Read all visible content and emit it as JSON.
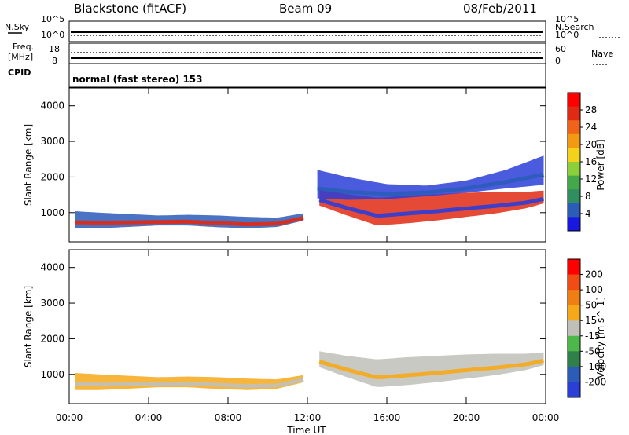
{
  "header": {
    "station": "Blackstone (fitACF)",
    "beam": "Beam 09",
    "date": "08/Feb/2011"
  },
  "status_panels": {
    "nsky_label": "N.Sky",
    "nsearch_label": "N.Search",
    "freq_label_line1": "Freq.",
    "freq_label_line2": "[MHz]",
    "nave_label": "Nave",
    "cpid_label": "CPID",
    "noise_ticks_left": [
      "10^5",
      "10^0"
    ],
    "noise_ticks_right": [
      "10^5",
      "10^0"
    ],
    "freq_ticks_left": [
      "18",
      "8"
    ],
    "nave_ticks_right": [
      "60",
      "0"
    ],
    "cpid_text": "normal (fast stereo) 153",
    "colors": {
      "line": "#000000"
    }
  },
  "chart_data": [
    {
      "type": "heatmap",
      "title": "",
      "quantity": "Power",
      "ylabel": "Slant Range [km]",
      "xlabel": "",
      "x_ticks": [
        "00:00",
        "04:00",
        "08:00",
        "12:00",
        "16:00",
        "20:00",
        "00:00"
      ],
      "xlim_hours": [
        0,
        24
      ],
      "ylim": [
        180,
        4500
      ],
      "y_ticks": [
        1000,
        2000,
        3000,
        4000
      ],
      "colorbar": {
        "label": "Power [dB]",
        "ticks": [
          4,
          8,
          12,
          16,
          20,
          24,
          28
        ],
        "range": [
          0,
          30
        ],
        "colors": [
          "#1818e0",
          "#2a5cb8",
          "#2f8f5e",
          "#44a84a",
          "#8ccf3a",
          "#f2d21a",
          "#f39a12",
          "#f0641a",
          "#e02a14",
          "#ff0000"
        ]
      },
      "band_series": [
        {
          "name": "main-scatter",
          "hours": [
            0.3,
            1.5,
            3.0,
            4.5,
            6.0,
            7.5,
            9.0,
            10.5,
            11.8
          ],
          "lower_km": [
            560,
            560,
            600,
            640,
            640,
            590,
            560,
            600,
            780
          ],
          "upper_km": [
            1040,
            1000,
            960,
            920,
            940,
            920,
            880,
            860,
            980
          ]
        },
        {
          "name": "late-scatter",
          "hours": [
            12.6,
            14.0,
            15.5,
            17.0,
            18.5,
            20.0,
            21.5,
            23.0,
            23.9
          ],
          "lower_km": [
            1200,
            920,
            640,
            700,
            780,
            880,
            980,
            1120,
            1260
          ],
          "upper_km": [
            1650,
            1520,
            1420,
            1480,
            1520,
            1560,
            1580,
            1580,
            1620
          ]
        },
        {
          "name": "upper-scatter",
          "hours": [
            12.5,
            14.0,
            16.0,
            18.0,
            20.0,
            22.0,
            23.9
          ],
          "lower_km": [
            1400,
            1360,
            1380,
            1460,
            1560,
            1680,
            1780
          ],
          "upper_km": [
            2200,
            2000,
            1800,
            1760,
            1900,
            2200,
            2600
          ]
        }
      ]
    },
    {
      "type": "heatmap",
      "title": "",
      "quantity": "Velocity",
      "ylabel": "Slant Range [km]",
      "xlabel": "Time UT",
      "x_ticks": [
        "00:00",
        "04:00",
        "08:00",
        "12:00",
        "16:00",
        "20:00",
        "00:00"
      ],
      "xlim_hours": [
        0,
        24
      ],
      "ylim": [
        180,
        4500
      ],
      "y_ticks": [
        1000,
        2000,
        3000,
        4000
      ],
      "colorbar": {
        "label": "Velocity [m s^-1]",
        "ticks": [
          200,
          100,
          50,
          15,
          -15,
          -50,
          -100,
          -200
        ],
        "colors": [
          "#2a3ed8",
          "#2a5cb8",
          "#30804a",
          "#4db84a",
          "#c0c0b8",
          "#f6a81a",
          "#f07e12",
          "#f04c14",
          "#ff0000"
        ]
      },
      "band_series": [
        {
          "name": "orange-scatter",
          "hours": [
            0.3,
            1.5,
            3.0,
            4.5,
            6.0,
            7.5,
            9.0,
            10.5,
            11.8
          ],
          "lower_km": [
            560,
            560,
            600,
            640,
            640,
            590,
            560,
            600,
            780
          ],
          "upper_km": [
            1040,
            1000,
            960,
            920,
            940,
            920,
            880,
            860,
            980
          ]
        },
        {
          "name": "grey-scatter",
          "hours": [
            12.6,
            14.0,
            15.5,
            17.0,
            18.5,
            20.0,
            21.5,
            23.0,
            23.9
          ],
          "lower_km": [
            1200,
            920,
            640,
            700,
            780,
            880,
            980,
            1120,
            1260
          ],
          "upper_km": [
            1650,
            1520,
            1420,
            1480,
            1520,
            1560,
            1580,
            1580,
            1620
          ]
        }
      ]
    }
  ]
}
